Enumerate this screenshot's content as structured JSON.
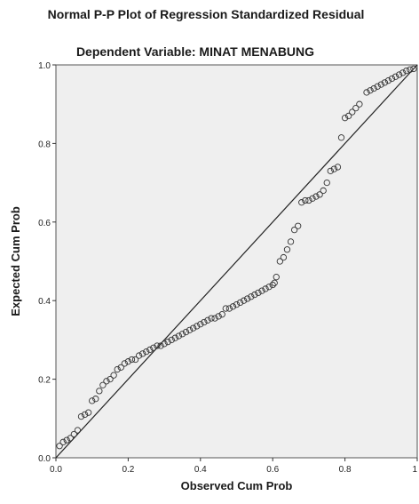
{
  "chart_data": {
    "type": "scatter",
    "title": "Normal P-P Plot of Regression Standardized Residual",
    "subtitle": "Dependent Variable: MINAT MENABUNG",
    "xlabel": "Observed Cum Prob",
    "ylabel": "Expected Cum Prob",
    "xlim": [
      0,
      1
    ],
    "ylim": [
      0,
      1
    ],
    "x_ticks": [
      "0.0",
      "0.2",
      "0.4",
      "0.6",
      "0.8",
      "1"
    ],
    "y_ticks": [
      "0.0",
      "0.2",
      "0.4",
      "0.6",
      "0.8",
      "1.0"
    ],
    "reference_line": {
      "from": [
        0,
        0
      ],
      "to": [
        1,
        1
      ]
    },
    "grid": false,
    "plot_background": "#efefef",
    "marker_color": "#333333",
    "points": [
      [
        0.01,
        0.03
      ],
      [
        0.02,
        0.04
      ],
      [
        0.03,
        0.045
      ],
      [
        0.04,
        0.05
      ],
      [
        0.05,
        0.06
      ],
      [
        0.06,
        0.07
      ],
      [
        0.07,
        0.105
      ],
      [
        0.08,
        0.11
      ],
      [
        0.09,
        0.115
      ],
      [
        0.1,
        0.145
      ],
      [
        0.11,
        0.15
      ],
      [
        0.12,
        0.17
      ],
      [
        0.13,
        0.185
      ],
      [
        0.14,
        0.195
      ],
      [
        0.15,
        0.2
      ],
      [
        0.16,
        0.21
      ],
      [
        0.17,
        0.225
      ],
      [
        0.18,
        0.23
      ],
      [
        0.19,
        0.24
      ],
      [
        0.2,
        0.245
      ],
      [
        0.21,
        0.25
      ],
      [
        0.22,
        0.25
      ],
      [
        0.23,
        0.26
      ],
      [
        0.24,
        0.265
      ],
      [
        0.25,
        0.27
      ],
      [
        0.26,
        0.275
      ],
      [
        0.27,
        0.28
      ],
      [
        0.28,
        0.285
      ],
      [
        0.29,
        0.285
      ],
      [
        0.3,
        0.29
      ],
      [
        0.31,
        0.295
      ],
      [
        0.32,
        0.3
      ],
      [
        0.33,
        0.305
      ],
      [
        0.34,
        0.31
      ],
      [
        0.35,
        0.315
      ],
      [
        0.36,
        0.32
      ],
      [
        0.37,
        0.325
      ],
      [
        0.38,
        0.33
      ],
      [
        0.39,
        0.335
      ],
      [
        0.4,
        0.34
      ],
      [
        0.41,
        0.345
      ],
      [
        0.42,
        0.35
      ],
      [
        0.43,
        0.355
      ],
      [
        0.44,
        0.355
      ],
      [
        0.45,
        0.36
      ],
      [
        0.46,
        0.365
      ],
      [
        0.47,
        0.38
      ],
      [
        0.48,
        0.38
      ],
      [
        0.49,
        0.385
      ],
      [
        0.5,
        0.39
      ],
      [
        0.51,
        0.395
      ],
      [
        0.52,
        0.4
      ],
      [
        0.53,
        0.405
      ],
      [
        0.54,
        0.41
      ],
      [
        0.55,
        0.415
      ],
      [
        0.56,
        0.42
      ],
      [
        0.57,
        0.425
      ],
      [
        0.58,
        0.43
      ],
      [
        0.59,
        0.435
      ],
      [
        0.6,
        0.44
      ],
      [
        0.605,
        0.445
      ],
      [
        0.61,
        0.46
      ],
      [
        0.62,
        0.5
      ],
      [
        0.63,
        0.51
      ],
      [
        0.64,
        0.53
      ],
      [
        0.65,
        0.55
      ],
      [
        0.66,
        0.58
      ],
      [
        0.67,
        0.59
      ],
      [
        0.68,
        0.65
      ],
      [
        0.69,
        0.655
      ],
      [
        0.7,
        0.655
      ],
      [
        0.71,
        0.66
      ],
      [
        0.72,
        0.665
      ],
      [
        0.73,
        0.67
      ],
      [
        0.74,
        0.68
      ],
      [
        0.75,
        0.7
      ],
      [
        0.76,
        0.73
      ],
      [
        0.77,
        0.735
      ],
      [
        0.78,
        0.74
      ],
      [
        0.79,
        0.815
      ],
      [
        0.8,
        0.865
      ],
      [
        0.81,
        0.87
      ],
      [
        0.82,
        0.88
      ],
      [
        0.83,
        0.89
      ],
      [
        0.84,
        0.9
      ],
      [
        0.86,
        0.93
      ],
      [
        0.87,
        0.935
      ],
      [
        0.88,
        0.94
      ],
      [
        0.89,
        0.945
      ],
      [
        0.9,
        0.95
      ],
      [
        0.91,
        0.955
      ],
      [
        0.92,
        0.96
      ],
      [
        0.93,
        0.965
      ],
      [
        0.94,
        0.97
      ],
      [
        0.95,
        0.975
      ],
      [
        0.96,
        0.98
      ],
      [
        0.97,
        0.985
      ],
      [
        0.98,
        0.988
      ],
      [
        0.99,
        0.99
      ]
    ]
  }
}
